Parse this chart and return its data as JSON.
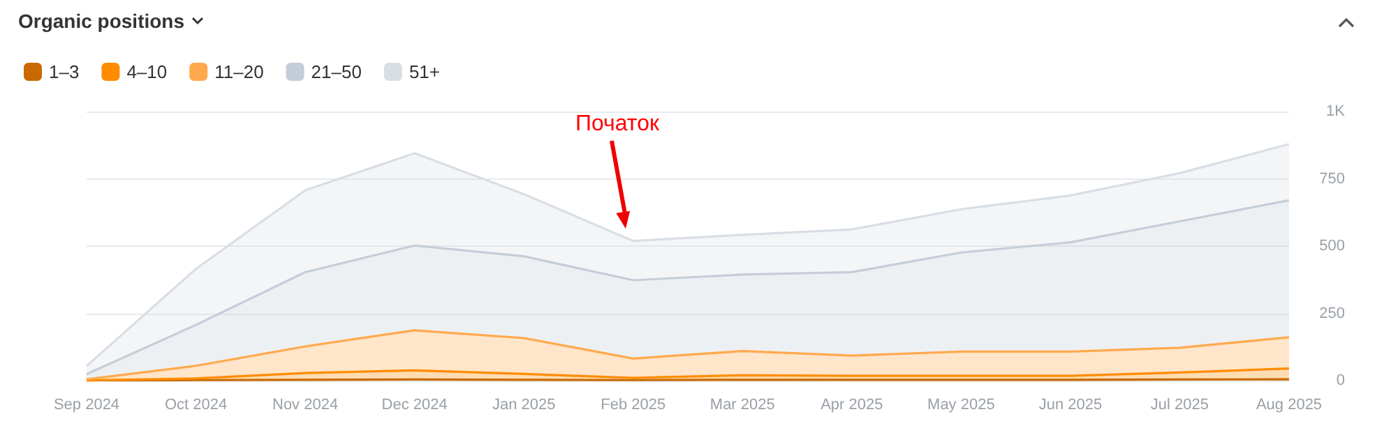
{
  "chart_data": {
    "type": "area",
    "stacked": true,
    "title": "Organic positions",
    "categories": [
      "Sep 2024",
      "Oct 2024",
      "Nov 2024",
      "Dec 2024",
      "Jan 2025",
      "Feb 2025",
      "Mar 2025",
      "Apr 2025",
      "May 2025",
      "Jun 2025",
      "Jul 2025",
      "Aug 2025"
    ],
    "series": [
      {
        "name": "1–3",
        "color": "#c96a00",
        "values": [
          1,
          2,
          3,
          4,
          3,
          2,
          3,
          3,
          3,
          3,
          4,
          5
        ]
      },
      {
        "name": "4–10",
        "color": "#ff8c00",
        "values": [
          0,
          6,
          25,
          34,
          22,
          8,
          17,
          15,
          15,
          15,
          26,
          40
        ]
      },
      {
        "name": "11–20",
        "color": "#ffa94d",
        "values": [
          4,
          47,
          99,
          149,
          133,
          72,
          90,
          75,
          90,
          90,
          92,
          116
        ]
      },
      {
        "name": "21–50",
        "color": "#c5cdd8",
        "values": [
          19,
          152,
          276,
          315,
          304,
          291,
          284,
          310,
          368,
          406,
          470,
          509
        ]
      },
      {
        "name": "51+",
        "color": "#d9dee5",
        "values": [
          30,
          208,
          304,
          343,
          231,
          146,
          148,
          159,
          161,
          174,
          179,
          209
        ]
      }
    ],
    "ylim": [
      0,
      1000
    ],
    "yticks": [
      0,
      250,
      500,
      750,
      {
        "value": 1000,
        "label": "1K"
      }
    ],
    "grid": "y",
    "legend": "top left",
    "marker": "none",
    "line_style": "solid",
    "annotations": [
      "Початок"
    ]
  }
}
